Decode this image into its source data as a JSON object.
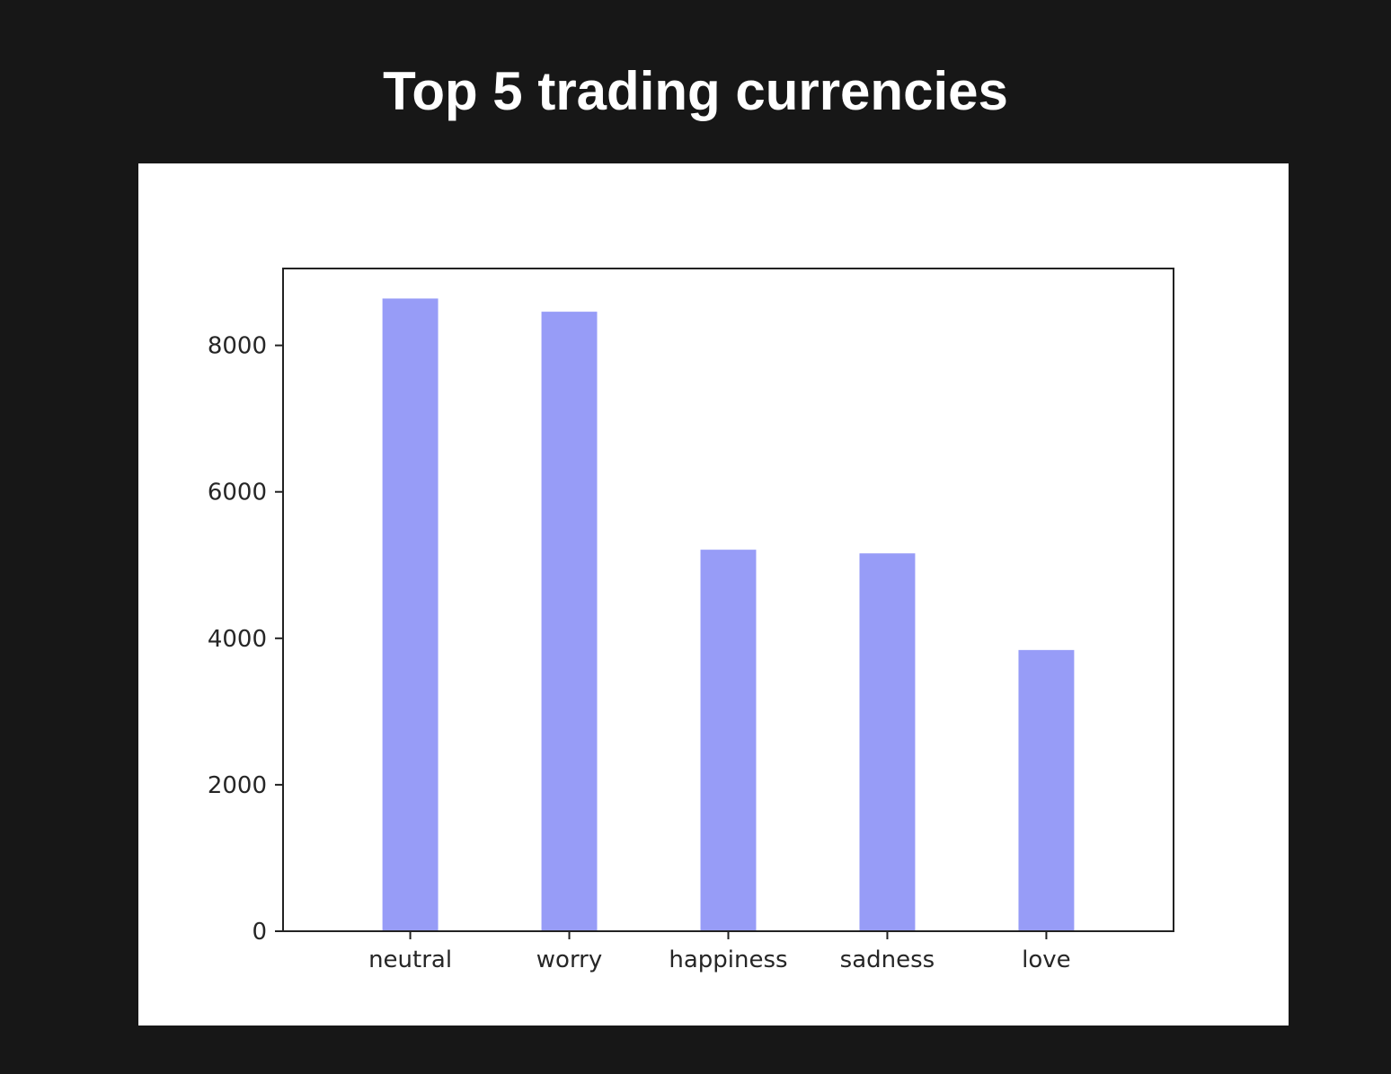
{
  "header": {
    "title": "Top 5 trading currencies"
  },
  "colors": {
    "background": "#171717",
    "panel": "#ffffff",
    "bar": "#979cf7",
    "axis": "#222222"
  },
  "chart_data": {
    "type": "bar",
    "categories": [
      "neutral",
      "worry",
      "happiness",
      "sadness",
      "love"
    ],
    "values": [
      8640,
      8460,
      5210,
      5160,
      3840
    ],
    "ylim": [
      0,
      9050
    ],
    "yticks": [
      0,
      2000,
      4000,
      6000,
      8000
    ],
    "xlabel": "",
    "ylabel": "",
    "grid": false,
    "legend": false
  }
}
